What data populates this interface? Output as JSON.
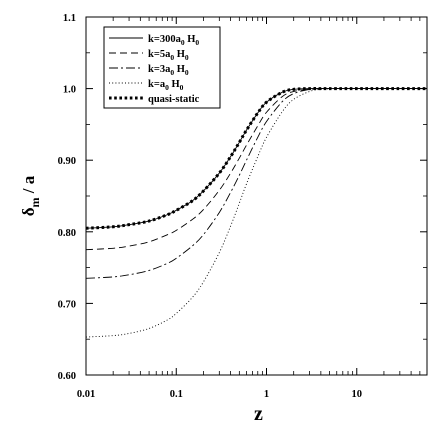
{
  "chart_data": {
    "type": "line",
    "xlabel": "z",
    "ylabel": {
      "main": "δ",
      "sub": "m",
      "suffix": " / a"
    },
    "xscale": "log",
    "xlim": [
      0.01,
      60
    ],
    "ylim": [
      0.6,
      1.1
    ],
    "x_ticks": [
      {
        "value": 0.01,
        "label": "0.01"
      },
      {
        "value": 0.1,
        "label": "0.1"
      },
      {
        "value": 1,
        "label": "1"
      },
      {
        "value": 10,
        "label": "10"
      }
    ],
    "y_ticks": [
      {
        "value": 0.6,
        "label": "0.60"
      },
      {
        "value": 0.7,
        "label": "0.70"
      },
      {
        "value": 0.8,
        "label": "0.80"
      },
      {
        "value": 0.9,
        "label": "0.90"
      },
      {
        "value": 1.0,
        "label": "1.0"
      },
      {
        "value": 1.1,
        "label": "1.1"
      }
    ],
    "grid": false,
    "legend_position": "top-left",
    "x": [
      0.01,
      0.02,
      0.03,
      0.05,
      0.08,
      0.1,
      0.15,
      0.2,
      0.3,
      0.4,
      0.5,
      0.6,
      0.8,
      1.0,
      1.5,
      2,
      3,
      4,
      6,
      10,
      20,
      60
    ],
    "series": [
      {
        "legend_parts": [
          {
            "t": "k=300a"
          },
          {
            "t": "0",
            "sub": true
          },
          {
            "t": " H"
          },
          {
            "t": "0",
            "sub": true
          }
        ],
        "style": "solid",
        "values": [
          0.805,
          0.807,
          0.81,
          0.815,
          0.824,
          0.83,
          0.843,
          0.857,
          0.882,
          0.905,
          0.925,
          0.942,
          0.966,
          0.981,
          0.995,
          0.999,
          1.0,
          1.0,
          1.0,
          1.0,
          1.0,
          1.0
        ]
      },
      {
        "legend_parts": [
          {
            "t": "k=5a"
          },
          {
            "t": "0",
            "sub": true
          },
          {
            "t": " H"
          },
          {
            "t": "0",
            "sub": true
          }
        ],
        "style": "dashed",
        "values": [
          0.775,
          0.777,
          0.78,
          0.786,
          0.796,
          0.802,
          0.817,
          0.831,
          0.858,
          0.882,
          0.903,
          0.921,
          0.948,
          0.967,
          0.989,
          0.996,
          0.999,
          1.0,
          1.0,
          1.0,
          1.0,
          1.0
        ]
      },
      {
        "legend_parts": [
          {
            "t": "k=3a"
          },
          {
            "t": "0",
            "sub": true
          },
          {
            "t": " H"
          },
          {
            "t": "0",
            "sub": true
          }
        ],
        "style": "dashdot",
        "values": [
          0.735,
          0.737,
          0.74,
          0.746,
          0.756,
          0.763,
          0.78,
          0.796,
          0.827,
          0.855,
          0.879,
          0.9,
          0.932,
          0.954,
          0.982,
          0.993,
          0.999,
          1.0,
          1.0,
          1.0,
          1.0,
          1.0
        ]
      },
      {
        "legend_parts": [
          {
            "t": "k=a"
          },
          {
            "t": "0",
            "sub": true
          },
          {
            "t": " H"
          },
          {
            "t": "0",
            "sub": true
          }
        ],
        "style": "dotted",
        "values": [
          0.653,
          0.655,
          0.658,
          0.665,
          0.677,
          0.686,
          0.708,
          0.73,
          0.771,
          0.808,
          0.84,
          0.867,
          0.905,
          0.932,
          0.968,
          0.985,
          0.996,
          0.999,
          1.0,
          1.0,
          1.0,
          1.0
        ]
      },
      {
        "legend_parts": [
          {
            "t": "quasi-static"
          }
        ],
        "style": "bold-dotted",
        "values": [
          0.805,
          0.807,
          0.81,
          0.815,
          0.824,
          0.83,
          0.843,
          0.857,
          0.882,
          0.905,
          0.925,
          0.942,
          0.966,
          0.981,
          0.995,
          0.999,
          1.0,
          1.0,
          1.0,
          1.0,
          1.0,
          1.0
        ]
      }
    ]
  }
}
